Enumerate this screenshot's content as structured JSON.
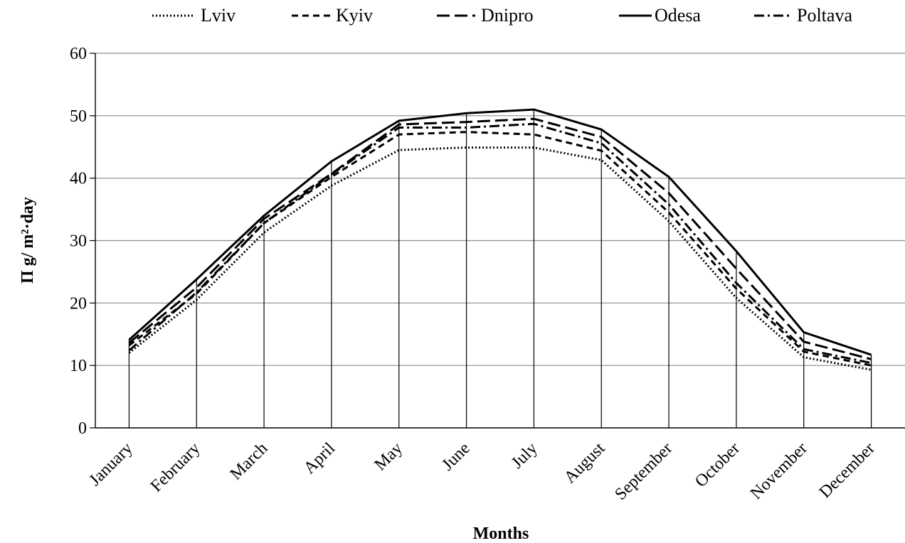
{
  "chart_data": {
    "type": "line",
    "title": "",
    "xlabel": "Months",
    "ylabel": "П  g/ m²·day",
    "ylim": [
      0,
      60
    ],
    "yticks": [
      0,
      10,
      20,
      30,
      40,
      50,
      60
    ],
    "grid": "horizontal",
    "legend_position": "top",
    "categories": [
      "January",
      "February",
      "March",
      "April",
      "May",
      "June",
      "July",
      "August",
      "September",
      "October",
      "November",
      "December"
    ],
    "series": [
      {
        "name": "Lviv",
        "style": "dotted",
        "values": [
          12.0,
          20.5,
          31.3,
          38.8,
          44.5,
          44.9,
          44.9,
          42.9,
          33.1,
          20.8,
          11.3,
          9.3
        ]
      },
      {
        "name": "Kyiv",
        "style": "dashed",
        "values": [
          13.2,
          21.5,
          32.8,
          40.2,
          47.0,
          47.4,
          47.0,
          44.4,
          34.5,
          22.3,
          12.2,
          10.0
        ]
      },
      {
        "name": "Dnipro",
        "style": "long-dash",
        "values": [
          13.6,
          22.5,
          33.5,
          40.7,
          48.6,
          49.0,
          49.5,
          46.6,
          37.6,
          25.5,
          13.8,
          11.0
        ]
      },
      {
        "name": "Odesa",
        "style": "solid",
        "values": [
          14.1,
          23.8,
          34.0,
          42.7,
          49.2,
          50.4,
          51.0,
          47.8,
          40.2,
          28.3,
          15.3,
          11.7
        ]
      },
      {
        "name": "Poltava",
        "style": "dash-dot",
        "values": [
          12.4,
          21.7,
          32.8,
          40.6,
          48.1,
          48.1,
          48.7,
          45.6,
          35.8,
          23.2,
          12.6,
          10.4
        ]
      }
    ],
    "colors": {
      "line": "#000000",
      "grid": "#8c8c8c",
      "axis": "#000000"
    }
  }
}
